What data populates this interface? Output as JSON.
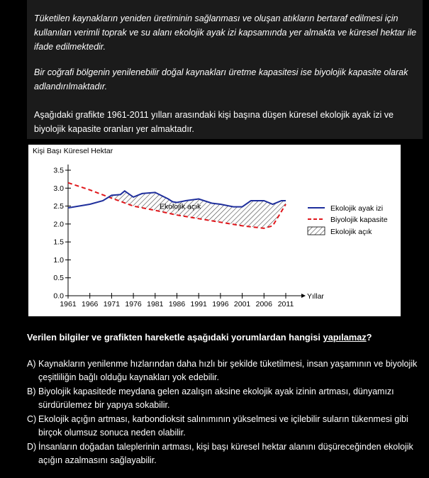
{
  "paragraph1": "Tüketilen kaynakların yeniden üretiminin sağlanması ve oluşan atıkların bertaraf edilmesi için kullanılan verimli toprak ve su alanı ekolojik ayak izi kapsamında yer almakta ve küresel hektar ile ifade edilmektedir.",
  "paragraph2": "Bir coğrafi bölgenin yenilenebilir doğal kaynakları üretme kapasitesi ise biyolojik kapasite olarak adlandırılmaktadır.",
  "intro": "Aşağıdaki grafikte 1961-2011 yılları arasındaki kişi başına düşen küresel ekolojik ayak izi ve biyolojik kapasite oranları yer almaktadır.",
  "chart_data": {
    "type": "line",
    "title": "",
    "ylabel": "Kişi Başı Küresel Hektar",
    "xlabel": "Yıllar",
    "x": [
      1961,
      1966,
      1971,
      1976,
      1981,
      1986,
      1991,
      1996,
      2001,
      2006,
      2011
    ],
    "ylim": [
      0,
      3.5
    ],
    "yticks": [
      "0.0",
      "0.5",
      "1.0",
      "1.5",
      "2.0",
      "2.5",
      "3.0",
      "3.5"
    ],
    "xticks": [
      "1961",
      "1966",
      "1971",
      "1976",
      "1981",
      "1986",
      "1991",
      "1996",
      "2001",
      "2006",
      "2011"
    ],
    "series": [
      {
        "name": "Ekolojik ayak izi",
        "style": "solid",
        "color": "#1f2f9c",
        "points": [
          [
            1961,
            2.45
          ],
          [
            1966,
            2.55
          ],
          [
            1969,
            2.65
          ],
          [
            1971,
            2.8
          ],
          [
            1973,
            2.82
          ],
          [
            1974,
            2.92
          ],
          [
            1976,
            2.75
          ],
          [
            1978,
            2.85
          ],
          [
            1981,
            2.88
          ],
          [
            1984,
            2.7
          ],
          [
            1985,
            2.62
          ],
          [
            1986,
            2.6
          ],
          [
            1988,
            2.65
          ],
          [
            1991,
            2.7
          ],
          [
            1994,
            2.58
          ],
          [
            1996,
            2.55
          ],
          [
            1999,
            2.48
          ],
          [
            2001,
            2.48
          ],
          [
            2003,
            2.65
          ],
          [
            2006,
            2.65
          ],
          [
            2008,
            2.55
          ],
          [
            2010,
            2.65
          ],
          [
            2011,
            2.65
          ]
        ]
      },
      {
        "name": "Biyolojik kapasite",
        "style": "dashed",
        "color": "#e0161b",
        "points": [
          [
            1961,
            3.15
          ],
          [
            1966,
            2.95
          ],
          [
            1971,
            2.72
          ],
          [
            1976,
            2.5
          ],
          [
            1981,
            2.38
          ],
          [
            1986,
            2.25
          ],
          [
            1991,
            2.15
          ],
          [
            1996,
            2.05
          ],
          [
            2001,
            1.95
          ],
          [
            2006,
            1.88
          ],
          [
            2008,
            1.95
          ],
          [
            2011,
            2.55
          ]
        ]
      }
    ],
    "annotation": "Ekolojik açık",
    "legend": [
      {
        "label": "Ekolojik ayak izi",
        "kind": "solid",
        "color": "#1f2f9c"
      },
      {
        "label": "Biyolojik kapasite",
        "kind": "dashed",
        "color": "#e0161b"
      },
      {
        "label": "Ekolojik açık",
        "kind": "hatch",
        "color": "#333333"
      }
    ],
    "legend_position": "right",
    "grid": false
  },
  "question": {
    "prefix": "Verilen bilgiler ve grafikten hareketle aşağıdaki yorumlardan hangisi ",
    "emph": "yapılamaz",
    "suffix": "?"
  },
  "options": [
    {
      "letter": "A)",
      "text": "Kaynakların yenilenme hızlarından daha hızlı bir şekilde tüketilmesi, insan yaşamının ve biyolojik çeşitliliğin bağlı olduğu kaynakları yok edebilir."
    },
    {
      "letter": "B)",
      "text": "Biyolojik kapasitede meydana gelen azalışın aksine ekolojik ayak izinin artması, dünyamızı sürdürülemez bir yapıya sokabilir."
    },
    {
      "letter": "C)",
      "text": "Ekolojik açığın artması, karbondioksit salınımının yükselmesi ve içilebilir suların tükenmesi gibi birçok olumsuz sonuca neden olabilir."
    },
    {
      "letter": "D)",
      "text": "İnsanların doğadan taleplerinin artması, kişi başı küresel hektar alanını düşüreceğinden ekolojik açığın azalmasını sağlayabilir."
    }
  ]
}
